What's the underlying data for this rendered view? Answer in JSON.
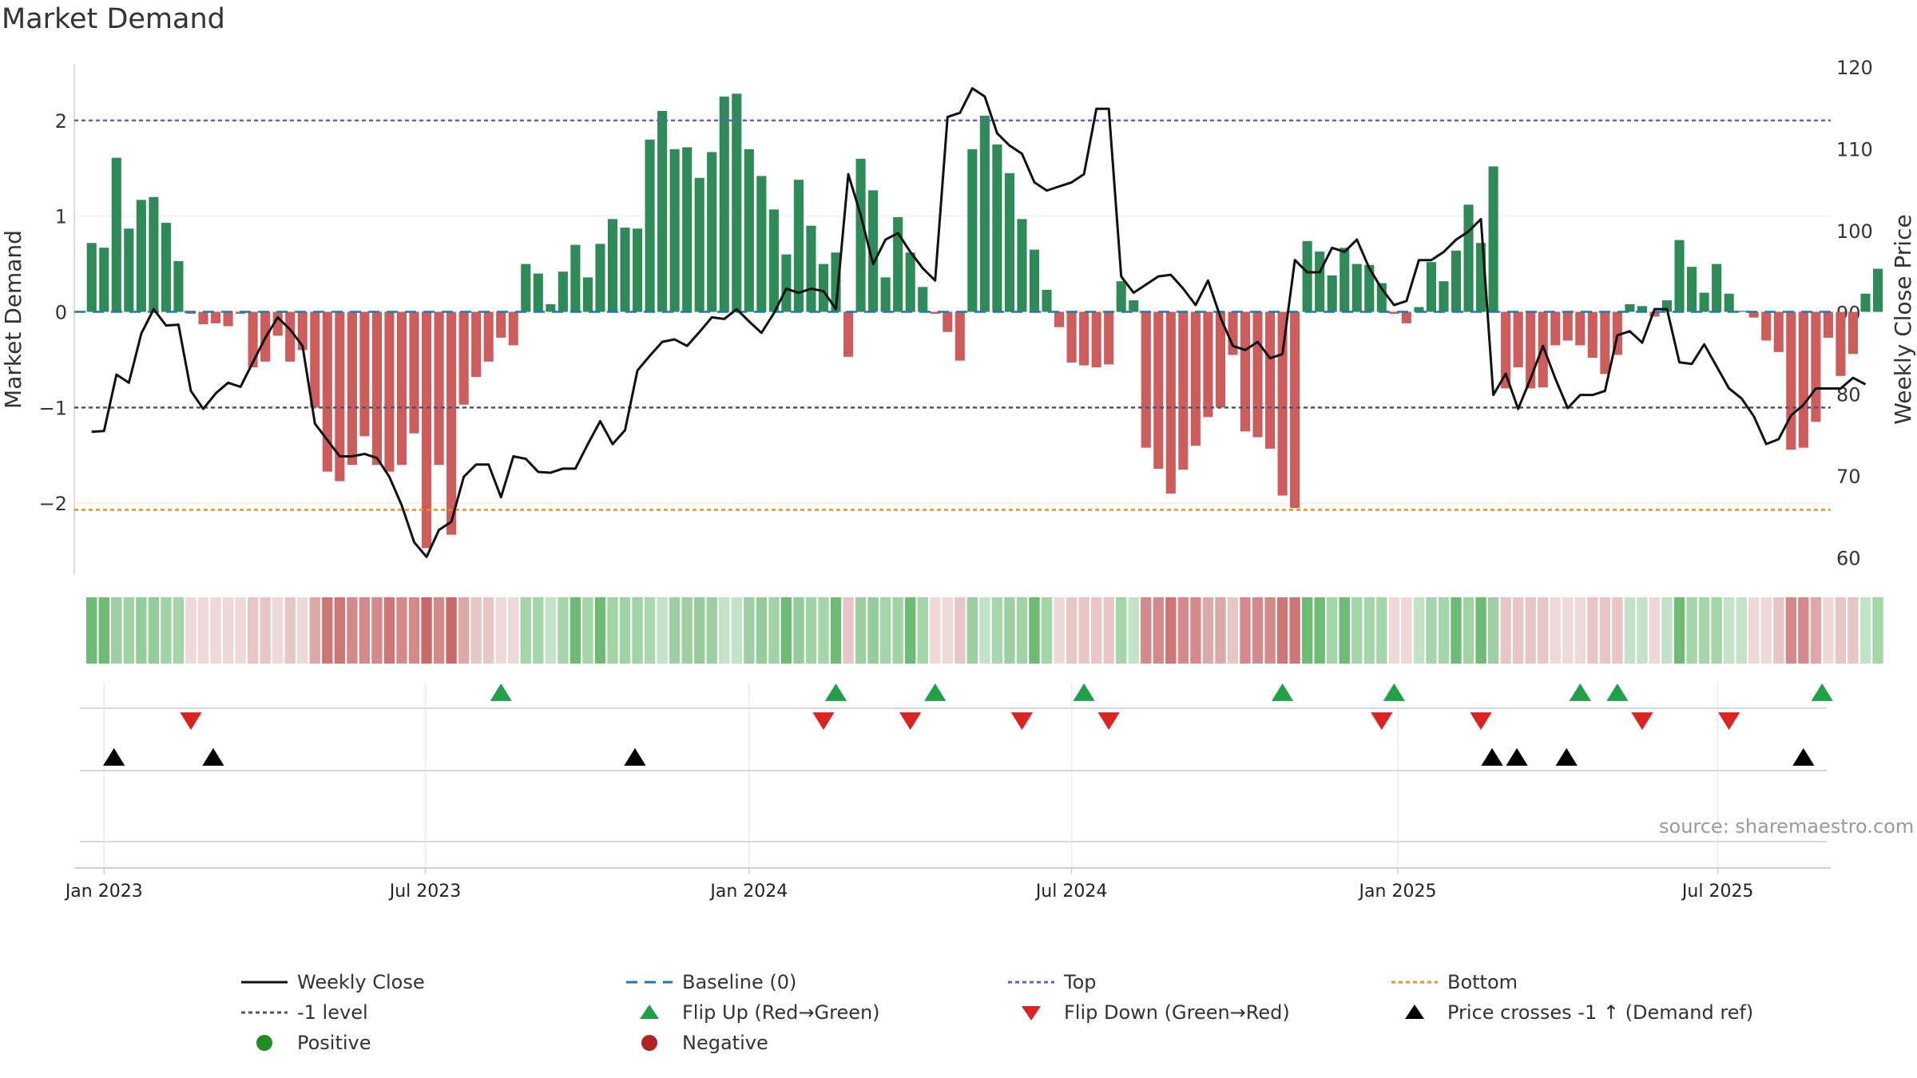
{
  "chart_data": {
    "type": "bar",
    "title": "Market Demand",
    "ylabel_left": "Market Demand",
    "ylabel_right": "Weekly Close Price",
    "ylim_left": [
      -2.75,
      2.55
    ],
    "ylim_right": [
      58,
      120
    ],
    "yticks_left": [
      2,
      1,
      0,
      -1,
      -2
    ],
    "ytick_labels_left": [
      "2",
      "1",
      "0",
      "−1",
      "−2"
    ],
    "yticks_right": [
      120,
      110,
      100,
      90,
      80,
      70,
      60
    ],
    "x_range_weeks": [
      -1.4,
      140.2
    ],
    "x_ticks": [
      {
        "label": "Jan 2023",
        "week": 1
      },
      {
        "label": "Jul 2023",
        "week": 26.9
      },
      {
        "label": "Jan 2024",
        "week": 53
      },
      {
        "label": "Jul 2024",
        "week": 79
      },
      {
        "label": "Jan 2025",
        "week": 105.3
      },
      {
        "label": "Jul 2025",
        "week": 131.1
      }
    ],
    "reference_lines": {
      "top": 2.0,
      "bottom": -2.07,
      "minus_one": -1.0,
      "baseline": 0
    },
    "demand": [
      0.72,
      0.67,
      1.61,
      0.87,
      1.17,
      1.2,
      0.93,
      0.53,
      -0.02,
      -0.13,
      -0.12,
      -0.15,
      -0.02,
      -0.58,
      -0.52,
      -0.25,
      -0.52,
      -0.4,
      -1.0,
      -1.67,
      -1.77,
      -1.6,
      -1.3,
      -1.6,
      -1.67,
      -1.6,
      -1.27,
      -2.47,
      -1.6,
      -2.33,
      -0.97,
      -0.68,
      -0.52,
      -0.27,
      -0.35,
      0.5,
      0.4,
      0.08,
      0.42,
      0.7,
      0.36,
      0.71,
      0.97,
      0.88,
      0.87,
      1.8,
      2.1,
      1.7,
      1.72,
      1.4,
      1.67,
      2.25,
      2.28,
      1.7,
      1.42,
      1.07,
      0.6,
      1.38,
      0.9,
      0.5,
      0.62,
      -0.47,
      1.6,
      1.27,
      0.36,
      0.99,
      0.62,
      0.26,
      -0.02,
      -0.21,
      -0.51,
      1.7,
      2.05,
      1.75,
      1.45,
      0.97,
      0.65,
      0.23,
      -0.16,
      -0.53,
      -0.56,
      -0.58,
      -0.55,
      0.32,
      0.12,
      -1.42,
      -1.64,
      -1.9,
      -1.65,
      -1.4,
      -1.1,
      -1.0,
      -0.45,
      -1.25,
      -1.31,
      -1.43,
      -1.92,
      -2.05,
      0.74,
      0.63,
      0.38,
      0.67,
      0.5,
      0.49,
      0.3,
      -0.02,
      -0.12,
      0.05,
      0.52,
      0.32,
      0.64,
      1.12,
      0.72,
      1.52,
      -0.8,
      -0.58,
      -0.8,
      -0.79,
      -0.35,
      -0.3,
      -0.35,
      -0.48,
      -0.65,
      -0.45,
      0.08,
      0.06,
      -0.05,
      0.12,
      0.75,
      0.47,
      0.2,
      0.5,
      0.19,
      0.01,
      -0.06,
      -0.3,
      -0.42,
      -1.44,
      -1.42,
      -1.15,
      -0.27,
      -0.67,
      -0.44,
      0.19,
      0.45
    ],
    "weekly_close": [
      75.5,
      75.6,
      82.5,
      81.5,
      87.5,
      90.5,
      88.5,
      88.6,
      80.5,
      78.3,
      80.2,
      81.5,
      81,
      84,
      87,
      89.5,
      88,
      86,
      76.5,
      74.5,
      72.5,
      72.5,
      72.8,
      72.3,
      70,
      66.5,
      62,
      60.2,
      63.5,
      64.5,
      70,
      71.5,
      71.5,
      67.5,
      72.5,
      72.2,
      70.6,
      70.5,
      71,
      71,
      74,
      76.8,
      74,
      75.7,
      83,
      84.8,
      86.5,
      86.8,
      86,
      87.7,
      89.5,
      89.3,
      90.5,
      89,
      87.6,
      90,
      93,
      92.5,
      93,
      92.7,
      90.5,
      107,
      102,
      96,
      99,
      99.8,
      97.5,
      95.5,
      94,
      114,
      114.5,
      117.5,
      116.5,
      112,
      110.5,
      109.5,
      106,
      105,
      105.5,
      106,
      107,
      115,
      115,
      94.5,
      92.5,
      93.5,
      94.5,
      94.7,
      93,
      91,
      94,
      89.5,
      86,
      85.5,
      86.5,
      84.5,
      85,
      96.5,
      95,
      95,
      98,
      97.5,
      99,
      95.5,
      93,
      91,
      91.5,
      96.5,
      96.5,
      97.5,
      99,
      100,
      101.5,
      80,
      82.6,
      78.3,
      82,
      86,
      82,
      78.4,
      80,
      80,
      80.5,
      87.3,
      87.8,
      86.4,
      90.5,
      90.5,
      84,
      83.8,
      86.2,
      83.5,
      80.8,
      79.6,
      77.4,
      74,
      74.6,
      77.5,
      78.8,
      80.8,
      80.8,
      80.8,
      82.1,
      81.3
    ],
    "strip_colors": {
      "positive": [
        "#c2e3c7",
        "#a5d6aa",
        "#6dbb75",
        "#a1d4a5",
        "#94cd99",
        "#9ecfa2",
        "#aad7ad",
        "#c2e3c7"
      ],
      "negative": [
        "#eed8d8",
        "#e8c6c6",
        "#dca8a8",
        "#d48a8a",
        "#cc7676",
        "#c96a6a"
      ]
    },
    "flip_up_weeks": [
      33,
      60,
      68,
      80,
      96,
      105,
      120,
      123,
      139.5
    ],
    "flip_down_weeks": [
      8,
      59,
      66,
      75,
      82,
      104,
      112,
      125,
      132
    ],
    "price_cross_weeks": [
      1.8,
      9.8,
      43.8,
      112.9,
      114.9,
      118.9,
      138
    ],
    "colors": {
      "positive_bar": "#2e8b57",
      "negative_bar": "#cd5c5c",
      "close_line": "#111111",
      "baseline": "#1f77b4",
      "top": "#6a5acd",
      "bottom": "#f28e1c",
      "minus_one": "#555566",
      "flip_up": "#22a049",
      "flip_down": "#dd2222",
      "price_cross": "#000000",
      "positive_dot": "#228b22",
      "negative_dot": "#b22222"
    }
  },
  "source_text": "source: sharemaestro.com",
  "legend": [
    {
      "label": "Weekly Close",
      "symbol": "solid-line",
      "color": "#111111"
    },
    {
      "label": "Baseline (0)",
      "symbol": "dashed-line",
      "color": "#1f77b4"
    },
    {
      "label": "Top",
      "symbol": "dotted-line",
      "color": "#6a5acd"
    },
    {
      "label": "Bottom",
      "symbol": "dotted-line",
      "color": "#f28e1c"
    },
    {
      "label": "-1 level",
      "symbol": "dotted-line",
      "color": "#555566"
    },
    {
      "label": "Flip Up (Red→Green)",
      "symbol": "triangle-up",
      "color": "#22a049"
    },
    {
      "label": "Flip Down (Green→Red)",
      "symbol": "triangle-down",
      "color": "#dd2222"
    },
    {
      "label": "Price crosses -1 ↑ (Demand ref)",
      "symbol": "triangle-up",
      "color": "#000000"
    },
    {
      "label": "Positive",
      "symbol": "dot",
      "color": "#228b22"
    },
    {
      "label": "Negative",
      "symbol": "dot",
      "color": "#b22222"
    }
  ]
}
